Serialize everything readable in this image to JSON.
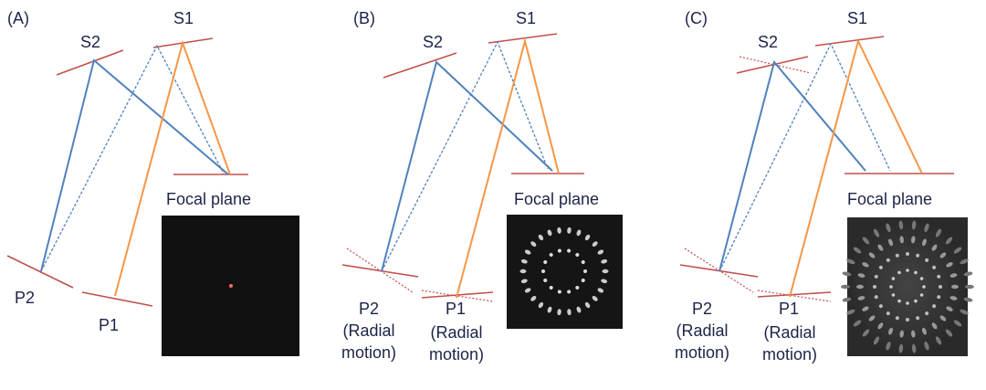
{
  "panels": [
    {
      "label": "(A)",
      "s1": "S1",
      "s2": "S2",
      "p1": "P1",
      "p2": "P2",
      "focal_plane": "Focal plane"
    },
    {
      "label": "(B)",
      "s1": "S1",
      "s2": "S2",
      "p1": "P1",
      "p2": "P2",
      "p1_note": "(Radial motion)",
      "p2_note": "(Radial motion)",
      "focal_plane": "Focal plane"
    },
    {
      "label": "(C)",
      "s1": "S1",
      "s2": "S2",
      "p1": "P1",
      "p2": "P2",
      "p1_note": "(Radial motion)",
      "p2_note": "(Radial motion)",
      "focal_plane": "Focal plane"
    }
  ]
}
